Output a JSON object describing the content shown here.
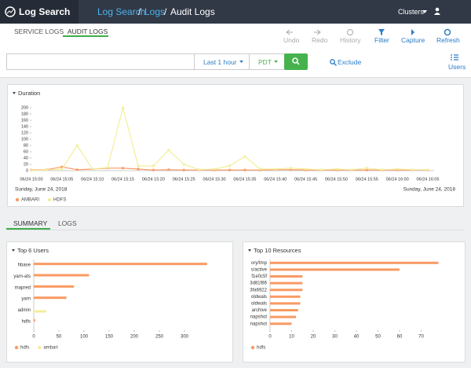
{
  "header": {
    "brand": "Log Search",
    "breadcrumb": [
      "Log Search",
      "Logs",
      "Audit Logs"
    ],
    "separator": "/",
    "clusters": "Clusters"
  },
  "tabs": [
    "SERVICE LOGS",
    "AUDIT LOGS"
  ],
  "toolbar": [
    "Undo",
    "Redo",
    "History",
    "Filter",
    "Capture",
    "Refresh"
  ],
  "search": {
    "time_range": "Last 1 hour",
    "timezone": "PDT",
    "exclude": "Exclude",
    "users": "Users"
  },
  "subtabs": [
    "SUMMARY",
    "LOGS"
  ],
  "chart_data": [
    {
      "type": "line",
      "title": "Duration",
      "categories": [
        "06/24 15:00",
        null,
        "06/24 15:05",
        null,
        "06/24 15:10",
        null,
        "06/24 15:15",
        null,
        "06/24 15:20",
        null,
        "06/24 15:25",
        null,
        "06/24 15:30",
        null,
        "06/24 15:35",
        null,
        "06/24 15:40",
        null,
        "06/24 15:45",
        null,
        "06/24 15:50",
        null,
        "06/24 15:55",
        null,
        "06/24 16:00",
        null,
        "06/24 16:05"
      ],
      "series": [
        {
          "name": "AMBARI",
          "color": "#f99a62",
          "values": [
            2,
            3,
            12,
            3,
            5,
            8,
            8,
            5,
            2,
            3,
            2,
            2,
            2,
            2,
            2,
            2,
            3,
            3,
            2,
            2,
            2,
            2,
            2,
            2,
            2,
            2,
            2
          ]
        },
        {
          "name": "HDFS",
          "color": "#f4ee9c",
          "values": [
            0,
            2,
            5,
            80,
            5,
            10,
            200,
            15,
            15,
            65,
            20,
            3,
            5,
            15,
            45,
            5,
            5,
            8,
            5,
            3,
            5,
            3,
            8,
            3,
            5,
            3,
            3
          ]
        }
      ],
      "ylim": [
        0,
        200
      ],
      "yticks": [
        0,
        20,
        40,
        60,
        80,
        100,
        120,
        140,
        160,
        180,
        200
      ],
      "start_date": "Sunday, June 24, 2018",
      "end_date": "Sunday, June 24, 2018"
    },
    {
      "type": "bar",
      "title": "Top 6 Users",
      "horizontal": true,
      "categories": [
        "hbase",
        "yarn-ats",
        "mapred",
        "yarn",
        "admin",
        "hdfs"
      ],
      "series": [
        {
          "name": "hdfs",
          "color": "#f99a62",
          "values": [
            345,
            110,
            80,
            65,
            0,
            3
          ]
        },
        {
          "name": "ambari",
          "color": "#f4ee9c",
          "values": [
            0,
            0,
            0,
            0,
            25,
            0
          ]
        }
      ],
      "xlim": [
        0,
        350
      ],
      "xticks": [
        0,
        50,
        100,
        150,
        200,
        250,
        300
      ]
    },
    {
      "type": "bar",
      "title": "Top 10 Resources",
      "horizontal": true,
      "categories": [
        "ory/tmp",
        "s/active",
        "f1e0c5f",
        "3d81f86",
        "3fa6922",
        "oldwals",
        "oldwals",
        "archive",
        "napshot",
        "napshot"
      ],
      "series": [
        {
          "name": "hdfs",
          "color": "#f99a62",
          "values": [
            78,
            60,
            15,
            15,
            15,
            14,
            14,
            13,
            12,
            10
          ]
        }
      ],
      "xlim": [
        0,
        80
      ],
      "xticks": [
        0,
        10,
        20,
        30,
        40,
        50,
        60,
        70
      ]
    }
  ]
}
